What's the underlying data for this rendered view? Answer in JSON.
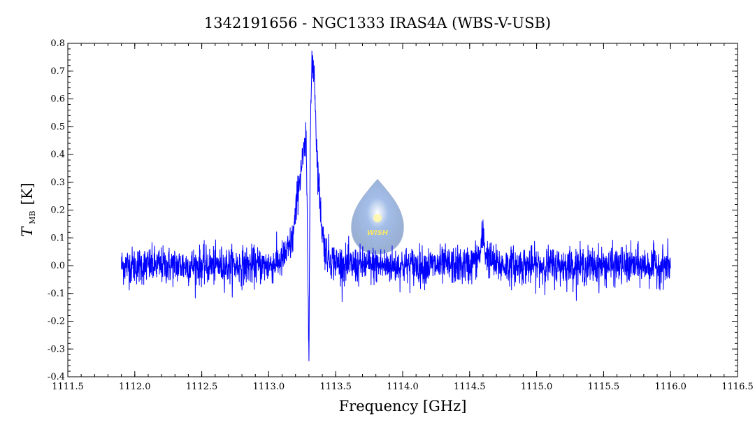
{
  "chart_data": {
    "type": "line",
    "title": "1342191656 - NGC1333 IRAS4A (WBS-V-USB)",
    "xlabel": "Frequency [GHz]",
    "ylabel_main": "T",
    "ylabel_sub": "MB",
    "ylabel_unit": "[K]",
    "xlim": [
      1111.5,
      1116.5
    ],
    "ylim": [
      -0.4,
      0.8
    ],
    "x_ticks": [
      1111.5,
      1112.0,
      1112.5,
      1113.0,
      1113.5,
      1114.0,
      1114.5,
      1115.0,
      1115.5,
      1116.0,
      1116.5
    ],
    "x_tick_labels": [
      "1111.5",
      "1112.0",
      "1112.5",
      "1113.0",
      "1113.5",
      "1114.0",
      "1114.5",
      "1115.0",
      "1115.5",
      "1116.0",
      "1116.5"
    ],
    "y_ticks": [
      -0.4,
      -0.3,
      -0.2,
      -0.1,
      0.0,
      0.1,
      0.2,
      0.3,
      0.4,
      0.5,
      0.6,
      0.7,
      0.8
    ],
    "y_tick_labels": [
      "-0.4",
      "-0.3",
      "-0.2",
      "-0.1",
      "0.0",
      "0.1",
      "0.2",
      "0.3",
      "0.4",
      "0.5",
      "0.6",
      "0.7",
      "0.8"
    ],
    "grid": false,
    "series": [
      {
        "color": "#0000ff",
        "x": [
          1111.9,
          1112.0,
          1112.1,
          1112.2,
          1112.3,
          1112.4,
          1112.5,
          1112.6,
          1112.7,
          1112.8,
          1112.9,
          1113.0,
          1113.1,
          1113.15,
          1113.18,
          1113.2,
          1113.22,
          1113.24,
          1113.26,
          1113.28,
          1113.3,
          1113.31,
          1113.32,
          1113.33,
          1113.34,
          1113.35,
          1113.36,
          1113.38,
          1113.4,
          1113.42,
          1113.45,
          1113.5,
          1113.6,
          1113.7,
          1113.8,
          1113.9,
          1114.0,
          1114.1,
          1114.2,
          1114.3,
          1114.4,
          1114.5,
          1114.58,
          1114.6,
          1114.62,
          1114.7,
          1114.8,
          1114.9,
          1115.0,
          1115.1,
          1115.2,
          1115.3,
          1115.4,
          1115.5,
          1115.6,
          1115.7,
          1115.8,
          1115.9,
          1116.0
        ],
        "y": [
          0.0,
          0.0,
          0.0,
          0.0,
          0.0,
          0.0,
          0.0,
          0.0,
          0.0,
          0.0,
          0.0,
          0.0,
          0.02,
          0.06,
          0.1,
          0.18,
          0.28,
          0.34,
          0.4,
          0.44,
          -0.29,
          0.45,
          0.68,
          0.73,
          0.7,
          0.55,
          0.4,
          0.25,
          0.12,
          0.06,
          0.03,
          0.01,
          0.0,
          0.0,
          0.0,
          0.0,
          0.0,
          0.0,
          0.0,
          0.0,
          0.0,
          0.0,
          0.04,
          0.12,
          0.04,
          0.0,
          0.0,
          0.0,
          0.0,
          0.0,
          0.0,
          0.0,
          0.0,
          0.0,
          0.0,
          0.0,
          0.0,
          0.0,
          0.0
        ],
        "noise_rms": 0.045
      }
    ],
    "logo_text": "WISH"
  }
}
